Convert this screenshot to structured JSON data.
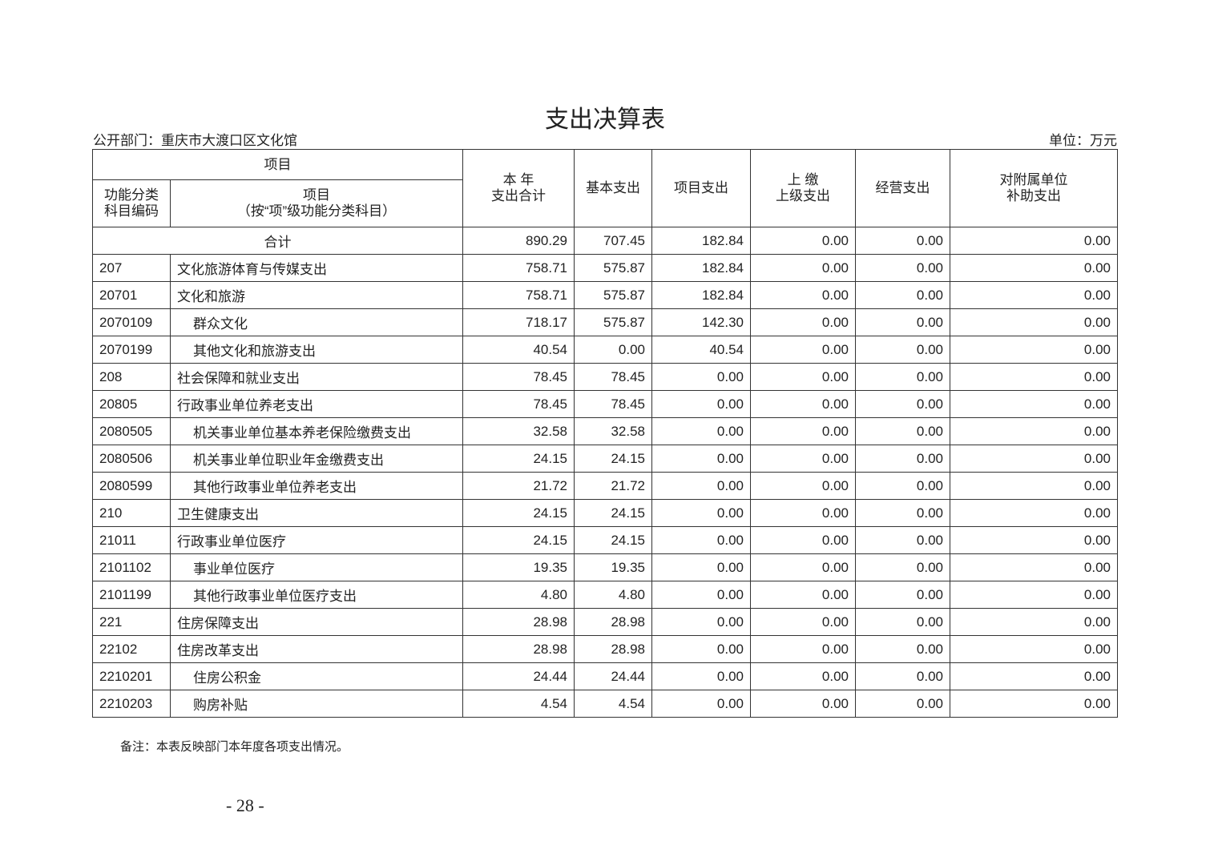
{
  "title": "支出决算表",
  "department": "公开部门：重庆市大渡口区文化馆",
  "unit": "单位：万元",
  "headers": {
    "item_group": "项目",
    "code": "功能分类\n科目编码",
    "item": "项目\n（按“项”级功能分类科目）",
    "total": "本 年\n支出合计",
    "basic": "基本支出",
    "project": "项目支出",
    "upper": "上 缴\n上级支出",
    "business": "经营支出",
    "subsidy": "对附属单位\n补助支出"
  },
  "total_row": {
    "label": "合计",
    "values": [
      "890.29",
      "707.45",
      "182.84",
      "0.00",
      "0.00",
      "0.00"
    ]
  },
  "rows": [
    {
      "code": "207",
      "name": "文化旅游体育与传媒支出",
      "indent": false,
      "values": [
        "758.71",
        "575.87",
        "182.84",
        "0.00",
        "0.00",
        "0.00"
      ]
    },
    {
      "code": "20701",
      "name": "文化和旅游",
      "indent": false,
      "values": [
        "758.71",
        "575.87",
        "182.84",
        "0.00",
        "0.00",
        "0.00"
      ]
    },
    {
      "code": "2070109",
      "name": "群众文化",
      "indent": true,
      "values": [
        "718.17",
        "575.87",
        "142.30",
        "0.00",
        "0.00",
        "0.00"
      ]
    },
    {
      "code": "2070199",
      "name": "其他文化和旅游支出",
      "indent": true,
      "values": [
        "40.54",
        "0.00",
        "40.54",
        "0.00",
        "0.00",
        "0.00"
      ]
    },
    {
      "code": "208",
      "name": "社会保障和就业支出",
      "indent": false,
      "values": [
        "78.45",
        "78.45",
        "0.00",
        "0.00",
        "0.00",
        "0.00"
      ]
    },
    {
      "code": "20805",
      "name": "行政事业单位养老支出",
      "indent": false,
      "values": [
        "78.45",
        "78.45",
        "0.00",
        "0.00",
        "0.00",
        "0.00"
      ]
    },
    {
      "code": "2080505",
      "name": "机关事业单位基本养老保险缴费支出",
      "indent": true,
      "values": [
        "32.58",
        "32.58",
        "0.00",
        "0.00",
        "0.00",
        "0.00"
      ]
    },
    {
      "code": "2080506",
      "name": "机关事业单位职业年金缴费支出",
      "indent": true,
      "values": [
        "24.15",
        "24.15",
        "0.00",
        "0.00",
        "0.00",
        "0.00"
      ]
    },
    {
      "code": "2080599",
      "name": "其他行政事业单位养老支出",
      "indent": true,
      "values": [
        "21.72",
        "21.72",
        "0.00",
        "0.00",
        "0.00",
        "0.00"
      ]
    },
    {
      "code": "210",
      "name": "卫生健康支出",
      "indent": false,
      "values": [
        "24.15",
        "24.15",
        "0.00",
        "0.00",
        "0.00",
        "0.00"
      ]
    },
    {
      "code": "21011",
      "name": "行政事业单位医疗",
      "indent": false,
      "values": [
        "24.15",
        "24.15",
        "0.00",
        "0.00",
        "0.00",
        "0.00"
      ]
    },
    {
      "code": "2101102",
      "name": "事业单位医疗",
      "indent": true,
      "values": [
        "19.35",
        "19.35",
        "0.00",
        "0.00",
        "0.00",
        "0.00"
      ]
    },
    {
      "code": "2101199",
      "name": "其他行政事业单位医疗支出",
      "indent": true,
      "values": [
        "4.80",
        "4.80",
        "0.00",
        "0.00",
        "0.00",
        "0.00"
      ]
    },
    {
      "code": "221",
      "name": "住房保障支出",
      "indent": false,
      "values": [
        "28.98",
        "28.98",
        "0.00",
        "0.00",
        "0.00",
        "0.00"
      ]
    },
    {
      "code": "22102",
      "name": "住房改革支出",
      "indent": false,
      "values": [
        "28.98",
        "28.98",
        "0.00",
        "0.00",
        "0.00",
        "0.00"
      ]
    },
    {
      "code": "2210201",
      "name": "住房公积金",
      "indent": true,
      "values": [
        "24.44",
        "24.44",
        "0.00",
        "0.00",
        "0.00",
        "0.00"
      ]
    },
    {
      "code": "2210203",
      "name": "购房补贴",
      "indent": true,
      "values": [
        "4.54",
        "4.54",
        "0.00",
        "0.00",
        "0.00",
        "0.00"
      ]
    }
  ],
  "note": "备注：本表反映部门本年度各项支出情况。",
  "page_number": "- 28 -"
}
